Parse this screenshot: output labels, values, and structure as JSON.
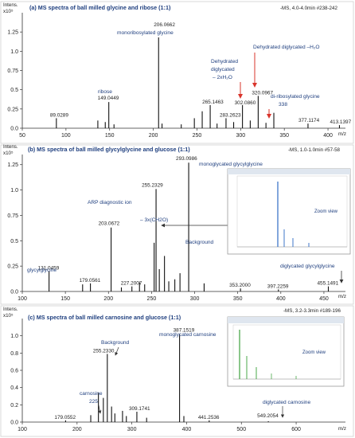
{
  "chart_data": [
    {
      "type": "bar",
      "title": "(a) MS spectra of ball milled glycine and ribose (1:1)",
      "meta": "-MS, 4.0-4.0min #238-242",
      "y_label": "Intens.",
      "y_multiplier": "x10⁵",
      "xlabel": "m/z",
      "xlim": [
        50,
        420
      ],
      "ylim": [
        0,
        1.5
      ],
      "x_ticks": [
        50,
        100,
        150,
        200,
        250,
        300,
        350,
        400
      ],
      "y_ticks": [
        0.0,
        0.25,
        0.5,
        0.75,
        1.0,
        1.25
      ],
      "peaks": [
        {
          "x": 89.0289,
          "y": 0.13,
          "label": "89.0289"
        },
        {
          "x": 136.5,
          "y": 0.1
        },
        {
          "x": 145.0,
          "y": 0.08
        },
        {
          "x": 149.0449,
          "y": 0.34,
          "label": "149.0449"
        },
        {
          "x": 155.0,
          "y": 0.05
        },
        {
          "x": 206.0662,
          "y": 1.18,
          "label": "206.0662"
        },
        {
          "x": 210.0,
          "y": 0.06
        },
        {
          "x": 232.0,
          "y": 0.05
        },
        {
          "x": 247.0,
          "y": 0.13
        },
        {
          "x": 256.0,
          "y": 0.22
        },
        {
          "x": 265.1463,
          "y": 0.3,
          "label": "265.1463"
        },
        {
          "x": 273.0,
          "y": 0.06
        },
        {
          "x": 283.2623,
          "y": 0.13,
          "label": "283.2623"
        },
        {
          "x": 292.0,
          "y": 0.08
        },
        {
          "x": 302.086,
          "y": 0.3,
          "label": "302.0860"
        },
        {
          "x": 311.0,
          "y": 0.1
        },
        {
          "x": 320.0967,
          "y": 0.42,
          "label": "320.0967"
        },
        {
          "x": 329.0,
          "y": 0.07
        },
        {
          "x": 338.0,
          "y": 0.2
        },
        {
          "x": 377.1174,
          "y": 0.06,
          "label": "377.1174"
        },
        {
          "x": 413.1397,
          "y": 0.04,
          "label": "413.1397"
        }
      ],
      "annotations": [
        {
          "text": "monoribosylated glycine",
          "color": "#1f3f7f"
        },
        {
          "text": "ribose",
          "color": "#1f3f7f"
        },
        {
          "text": "Dehydrated diglycated − 2xH₂O",
          "lines": [
            "Dehydrated",
            "diglycated",
            "– 2xH₂O"
          ],
          "color": "#1f3f7f"
        },
        {
          "text": "Dehydrated diglycated –H₂O",
          "color": "#1f3f7f"
        },
        {
          "text": "di-ribosylated glycine 338",
          "lines": [
            "di-ribosylated glycine",
            "338"
          ],
          "color": "#1f3f7f"
        }
      ]
    },
    {
      "type": "bar",
      "title": "(b) MS spectra of ball milled glycylglycine and glucose (1:1)",
      "meta": "-MS, 1.0-1.0min #57-58",
      "y_label": "Intens.",
      "y_multiplier": "x10⁵",
      "xlabel": "m/z",
      "xlim": [
        100,
        475
      ],
      "ylim": [
        0,
        1.35
      ],
      "x_ticks": [
        100,
        150,
        200,
        250,
        300,
        350,
        400,
        450
      ],
      "y_ticks": [
        0.0,
        0.25,
        0.5,
        0.75,
        1.0,
        1.25
      ],
      "peaks": [
        {
          "x": 131.0459,
          "y": 0.2,
          "label": "131.0459"
        },
        {
          "x": 170.0,
          "y": 0.07
        },
        {
          "x": 179.0561,
          "y": 0.08,
          "label": "179.0561"
        },
        {
          "x": 203.0672,
          "y": 0.63,
          "label": "203.0672"
        },
        {
          "x": 215.0,
          "y": 0.04
        },
        {
          "x": 227.2007,
          "y": 0.05,
          "label": "227.2007"
        },
        {
          "x": 236.0,
          "y": 0.09
        },
        {
          "x": 242.0,
          "y": 0.07
        },
        {
          "x": 253.0,
          "y": 0.48
        },
        {
          "x": 255.2329,
          "y": 1.01,
          "label": "255.2329"
        },
        {
          "x": 259.0,
          "y": 0.22
        },
        {
          "x": 265.0,
          "y": 0.35
        },
        {
          "x": 270.0,
          "y": 0.1
        },
        {
          "x": 277.0,
          "y": 0.12
        },
        {
          "x": 283.0,
          "y": 0.18
        },
        {
          "x": 293.0986,
          "y": 1.27,
          "label": "293.0986"
        },
        {
          "x": 311.0,
          "y": 0.08
        },
        {
          "x": 353.2,
          "y": 0.03,
          "label": "353.2000"
        },
        {
          "x": 397.2259,
          "y": 0.02,
          "label": "397.2259"
        },
        {
          "x": 455.1491,
          "y": 0.05,
          "label": "455.1491"
        }
      ],
      "annotations": [
        {
          "text": "monoglycated glycylglycine",
          "color": "#1f3f7f"
        },
        {
          "text": "ARP diagnostic ion",
          "color": "#1f3f7f"
        },
        {
          "text": "– 3x(CH2O)",
          "color": "#1f3f7f"
        },
        {
          "text": "Background",
          "color": "#1f3f7f"
        },
        {
          "text": "glycylglycine",
          "color": "#1f3f7f"
        },
        {
          "text": "diglycated glycylglycine",
          "color": "#1f3f7f"
        },
        {
          "text": "Zoom view",
          "color": "#1f3f7f"
        }
      ]
    },
    {
      "type": "bar",
      "title": "(c) MS spectra of ball milled carnosine and glucose (1:1)",
      "meta": "-MS, 3.2-3.3min #189-196",
      "y_label": "Intens.",
      "y_multiplier": "x10⁵",
      "xlabel": "m/z",
      "xlim": [
        100,
        690
      ],
      "ylim": [
        0,
        1.2
      ],
      "x_ticks": [
        100,
        200,
        300,
        400,
        500,
        600
      ],
      "y_ticks": [
        0.0,
        0.2,
        0.4,
        0.6,
        0.8,
        1.0
      ],
      "peaks": [
        {
          "x": 179.0552,
          "y": 0.02,
          "label": "179.0552"
        },
        {
          "x": 225.0,
          "y": 0.08
        },
        {
          "x": 239.0,
          "y": 0.34
        },
        {
          "x": 248.0,
          "y": 0.28
        },
        {
          "x": 255.233,
          "y": 0.79,
          "label": "255.2330"
        },
        {
          "x": 263.0,
          "y": 0.18
        },
        {
          "x": 269.0,
          "y": 0.1
        },
        {
          "x": 283.0,
          "y": 0.13
        },
        {
          "x": 290.0,
          "y": 0.07
        },
        {
          "x": 309.1741,
          "y": 0.12,
          "label": "309.1741"
        },
        {
          "x": 327.0,
          "y": 0.05
        },
        {
          "x": 387.1519,
          "y": 1.02,
          "label": "387.1519"
        },
        {
          "x": 395.0,
          "y": 0.07
        },
        {
          "x": 441.2536,
          "y": 0.02,
          "label": "441.2536"
        },
        {
          "x": 549.2054,
          "y": 0.01,
          "label": "549.2054"
        }
      ],
      "annotations": [
        {
          "text": "monoglycated carnosine",
          "color": "#1f3f7f"
        },
        {
          "text": "Background",
          "color": "#1f3f7f"
        },
        {
          "text": "carnosine",
          "color": "#1f3f7f"
        },
        {
          "text": "225",
          "color": "#1f3f7f"
        },
        {
          "text": "diglycated carnosine",
          "color": "#1f3f7f"
        },
        {
          "text": "Zoom view",
          "color": "#1f3f7f"
        }
      ]
    }
  ],
  "colors": {
    "label_blue": "#1f3f7f",
    "arrow_red": "#d9342b",
    "spectrum": "#111111",
    "zoom_blue": "#3f77c9",
    "zoom_green": "#4aa84a"
  }
}
